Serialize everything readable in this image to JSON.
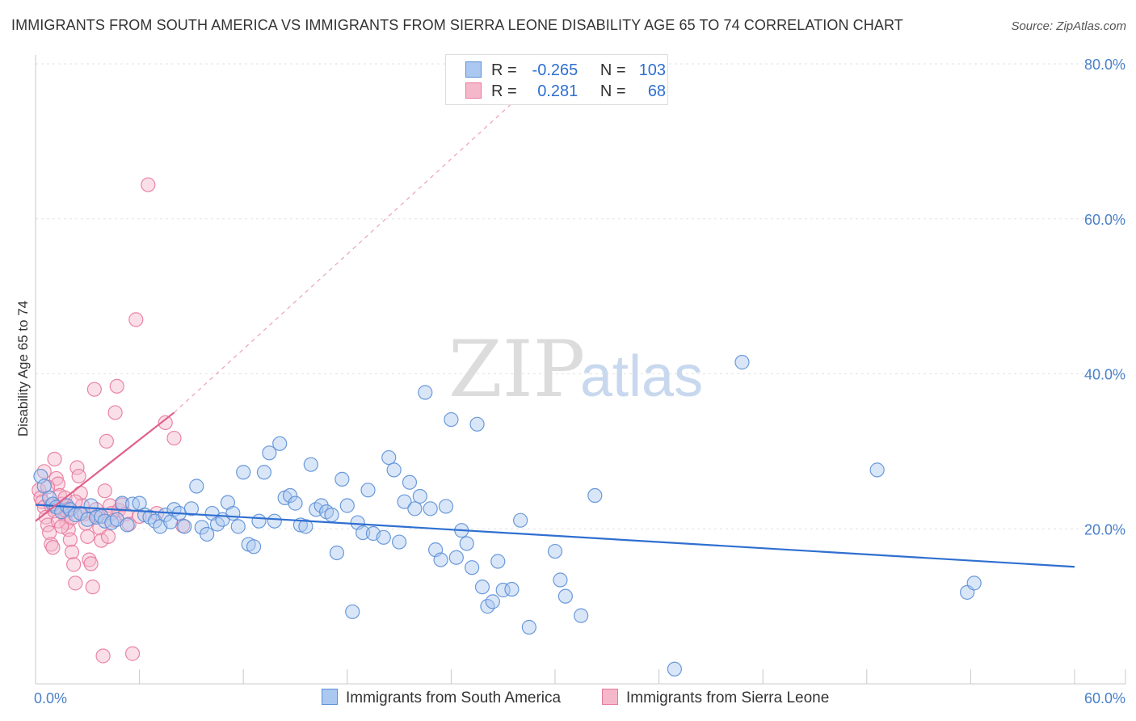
{
  "title": "IMMIGRANTS FROM SOUTH AMERICA VS IMMIGRANTS FROM SIERRA LEONE DISABILITY AGE 65 TO 74 CORRELATION CHART",
  "source": "Source: ZipAtlas.com",
  "watermark": {
    "zip": "ZIP",
    "atlas": "atlas"
  },
  "colors": {
    "blue": "#5b8fd6",
    "blue_fill": "#aac8f0",
    "blue_line": "#2f6fd0",
    "pink": "#e8799c",
    "pink_fill": "#f5b8cb",
    "pink_line": "#e0608a"
  },
  "stats": {
    "rows": [
      {
        "r_label": "R =",
        "r": "-0.265",
        "n_label": "N =",
        "n": "103"
      },
      {
        "r_label": "R =",
        "r": "0.281",
        "n_label": "N =",
        "n": "68"
      }
    ]
  },
  "chart_data": {
    "type": "scatter",
    "title": "IMMIGRANTS FROM SOUTH AMERICA VS IMMIGRANTS FROM SIERRA LEONE DISABILITY AGE 65 TO 74 CORRELATION CHART",
    "xlabel": "",
    "ylabel": "Disability Age 65 to 74",
    "xlim": [
      0,
      60
    ],
    "ylim": [
      0,
      80
    ],
    "x_tick_labels": [
      "0.0%",
      "60.0%"
    ],
    "y_tick_labels": [
      "20.0%",
      "40.0%",
      "60.0%",
      "80.0%"
    ],
    "y_ticks": [
      20,
      40,
      60,
      80
    ],
    "grid": true,
    "legend_position": "bottom",
    "series": [
      {
        "name": "Immigrants from South America",
        "trend": {
          "x": [
            0,
            60
          ],
          "y": [
            23.1,
            15.1
          ]
        },
        "points": [
          [
            0.3,
            26.8
          ],
          [
            0.5,
            25.5
          ],
          [
            0.8,
            24.0
          ],
          [
            1.0,
            23.2
          ],
          [
            1.2,
            22.8
          ],
          [
            1.5,
            22.2
          ],
          [
            1.8,
            23.0
          ],
          [
            2.0,
            22.5
          ],
          [
            2.3,
            21.8
          ],
          [
            2.6,
            22.0
          ],
          [
            3.0,
            21.2
          ],
          [
            3.2,
            23.0
          ],
          [
            3.5,
            21.5
          ],
          [
            3.8,
            21.6
          ],
          [
            4.0,
            21.0
          ],
          [
            4.4,
            20.8
          ],
          [
            4.7,
            21.2
          ],
          [
            5.0,
            23.3
          ],
          [
            5.3,
            20.5
          ],
          [
            5.6,
            23.2
          ],
          [
            6.0,
            23.3
          ],
          [
            6.3,
            21.8
          ],
          [
            6.6,
            21.5
          ],
          [
            6.9,
            21.0
          ],
          [
            7.2,
            20.3
          ],
          [
            7.5,
            21.8
          ],
          [
            7.8,
            20.9
          ],
          [
            8.0,
            22.5
          ],
          [
            8.3,
            22.0
          ],
          [
            8.6,
            20.3
          ],
          [
            9.0,
            22.6
          ],
          [
            9.3,
            25.5
          ],
          [
            9.6,
            20.2
          ],
          [
            9.9,
            19.3
          ],
          [
            10.2,
            22.0
          ],
          [
            10.5,
            20.6
          ],
          [
            10.8,
            21.2
          ],
          [
            11.1,
            23.4
          ],
          [
            11.4,
            22.0
          ],
          [
            11.7,
            20.3
          ],
          [
            12.0,
            27.3
          ],
          [
            12.3,
            18.0
          ],
          [
            12.6,
            17.7
          ],
          [
            12.9,
            21.0
          ],
          [
            13.2,
            27.3
          ],
          [
            13.5,
            29.8
          ],
          [
            13.8,
            21.0
          ],
          [
            14.1,
            31.0
          ],
          [
            14.4,
            24.0
          ],
          [
            14.7,
            24.3
          ],
          [
            15.0,
            23.3
          ],
          [
            15.3,
            20.5
          ],
          [
            15.6,
            20.3
          ],
          [
            15.9,
            28.3
          ],
          [
            16.2,
            22.5
          ],
          [
            16.5,
            23.0
          ],
          [
            16.8,
            22.2
          ],
          [
            17.1,
            21.8
          ],
          [
            17.4,
            16.9
          ],
          [
            17.7,
            26.4
          ],
          [
            18.0,
            23.0
          ],
          [
            18.3,
            9.3
          ],
          [
            18.6,
            20.8
          ],
          [
            18.9,
            19.5
          ],
          [
            19.2,
            25.0
          ],
          [
            19.5,
            19.4
          ],
          [
            20.1,
            18.9
          ],
          [
            20.4,
            29.2
          ],
          [
            20.7,
            27.6
          ],
          [
            21.0,
            18.3
          ],
          [
            21.3,
            23.5
          ],
          [
            21.6,
            26.0
          ],
          [
            21.9,
            22.6
          ],
          [
            22.2,
            24.2
          ],
          [
            22.5,
            37.6
          ],
          [
            22.8,
            22.6
          ],
          [
            23.1,
            17.3
          ],
          [
            23.4,
            16.0
          ],
          [
            23.7,
            22.9
          ],
          [
            24.0,
            34.1
          ],
          [
            24.3,
            16.3
          ],
          [
            24.6,
            19.8
          ],
          [
            24.9,
            18.1
          ],
          [
            25.2,
            15.0
          ],
          [
            25.5,
            33.5
          ],
          [
            25.8,
            12.5
          ],
          [
            26.1,
            10.0
          ],
          [
            26.4,
            10.6
          ],
          [
            26.7,
            15.8
          ],
          [
            27.0,
            12.1
          ],
          [
            27.5,
            12.2
          ],
          [
            28.0,
            21.1
          ],
          [
            28.5,
            7.3
          ],
          [
            30.0,
            17.1
          ],
          [
            30.3,
            13.4
          ],
          [
            30.6,
            11.3
          ],
          [
            31.5,
            8.8
          ],
          [
            32.3,
            24.3
          ],
          [
            36.9,
            1.9
          ],
          [
            40.8,
            41.5
          ],
          [
            48.6,
            27.6
          ],
          [
            53.8,
            11.8
          ],
          [
            54.2,
            13.0
          ]
        ]
      },
      {
        "name": "Immigrants from Sierra Leone",
        "trend": {
          "x": [
            0,
            8.0
          ],
          "y": [
            21.0,
            35.0
          ],
          "dash_to": {
            "x": 30,
            "y": 80
          }
        },
        "points": [
          [
            0.2,
            25.0
          ],
          [
            0.3,
            24.0
          ],
          [
            0.4,
            23.5
          ],
          [
            0.5,
            22.8
          ],
          [
            0.6,
            21.5
          ],
          [
            0.7,
            20.5
          ],
          [
            0.8,
            19.5
          ],
          [
            0.9,
            18.0
          ],
          [
            1.0,
            17.6
          ],
          [
            1.1,
            29.0
          ],
          [
            1.2,
            26.5
          ],
          [
            1.3,
            25.8
          ],
          [
            1.4,
            24.3
          ],
          [
            1.5,
            23.2
          ],
          [
            1.6,
            22.4
          ],
          [
            1.7,
            21.7
          ],
          [
            1.8,
            20.8
          ],
          [
            1.9,
            19.9
          ],
          [
            2.0,
            18.6
          ],
          [
            2.1,
            17.0
          ],
          [
            2.2,
            15.4
          ],
          [
            2.3,
            13.0
          ],
          [
            2.4,
            27.9
          ],
          [
            2.5,
            26.8
          ],
          [
            2.6,
            24.6
          ],
          [
            2.7,
            23.0
          ],
          [
            2.8,
            21.9
          ],
          [
            2.9,
            20.7
          ],
          [
            3.0,
            19.0
          ],
          [
            3.1,
            16.0
          ],
          [
            3.2,
            15.5
          ],
          [
            3.3,
            12.5
          ],
          [
            3.4,
            38.0
          ],
          [
            3.5,
            22.5
          ],
          [
            3.6,
            21.7
          ],
          [
            3.7,
            20.1
          ],
          [
            3.8,
            18.5
          ],
          [
            3.9,
            3.6
          ],
          [
            4.0,
            24.9
          ],
          [
            4.1,
            31.3
          ],
          [
            4.2,
            19.0
          ],
          [
            4.3,
            23.0
          ],
          [
            4.4,
            22.0
          ],
          [
            4.5,
            21.1
          ],
          [
            4.6,
            35.0
          ],
          [
            4.7,
            38.4
          ],
          [
            4.8,
            22.4
          ],
          [
            5.0,
            23.1
          ],
          [
            5.2,
            21.9
          ],
          [
            5.4,
            20.6
          ],
          [
            5.6,
            3.9
          ],
          [
            5.8,
            47.0
          ],
          [
            6.0,
            21.6
          ],
          [
            6.5,
            64.4
          ],
          [
            7.0,
            22.0
          ],
          [
            7.5,
            33.7
          ],
          [
            8.0,
            31.7
          ],
          [
            8.5,
            20.4
          ],
          [
            0.5,
            27.4
          ],
          [
            0.7,
            25.4
          ],
          [
            0.9,
            23.0
          ],
          [
            1.1,
            22.3
          ],
          [
            1.3,
            21.0
          ],
          [
            1.5,
            20.3
          ],
          [
            1.7,
            24.0
          ],
          [
            1.9,
            22.6
          ],
          [
            2.1,
            21.4
          ],
          [
            2.3,
            23.5
          ]
        ]
      }
    ]
  },
  "legend": {
    "items": [
      "Immigrants from South America",
      "Immigrants from Sierra Leone"
    ]
  }
}
